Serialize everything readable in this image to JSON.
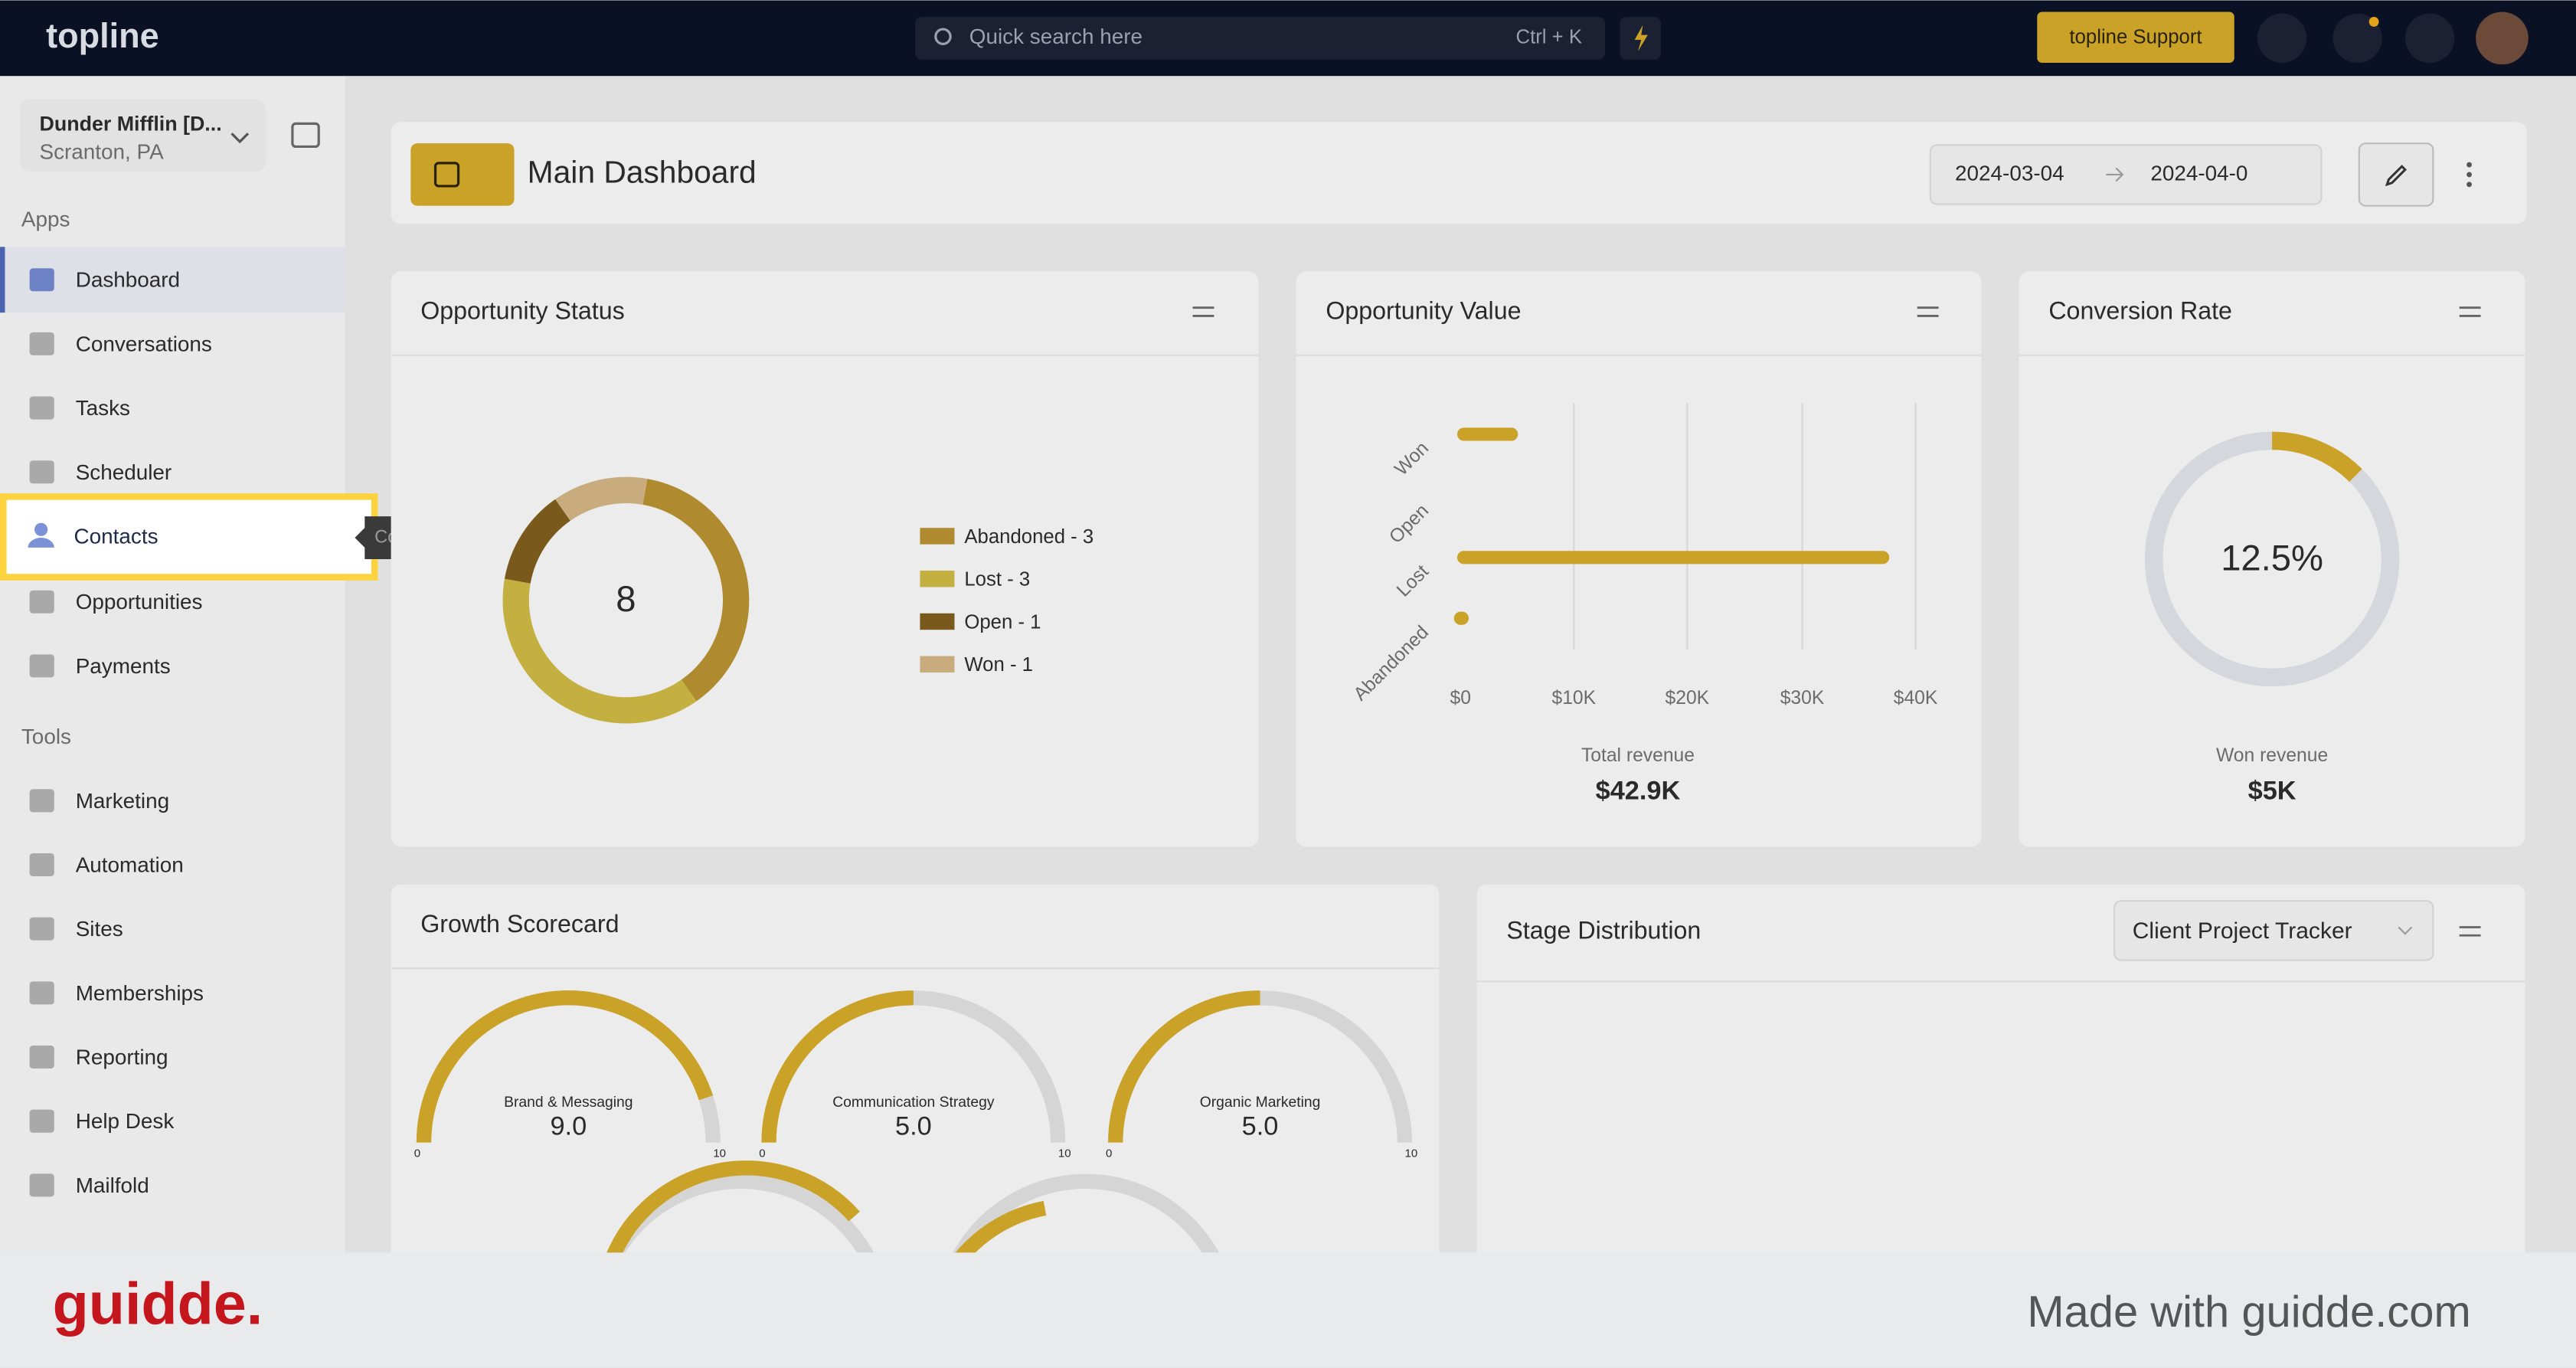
{
  "topbar": {
    "logo": "topline",
    "search": "Quick search here",
    "shortcut": "Ctrl + K",
    "support": "topline Support"
  },
  "sidebar": {
    "account": {
      "name": "Dunder Mifflin [D...",
      "location": "Scranton, PA"
    },
    "sections": [
      {
        "title": "Apps",
        "items": [
          "Dashboard",
          "Conversations",
          "Tasks",
          "Scheduler",
          "Contacts",
          "Opportunities",
          "Payments"
        ]
      },
      {
        "title": "Tools",
        "items": [
          "Marketing",
          "Automation",
          "Sites",
          "Memberships",
          "Reporting",
          "Help Desk",
          "Mailfold"
        ]
      }
    ]
  },
  "tooltip": "Cont",
  "header": {
    "title": "Main Dashboard",
    "date_from": "2024-03-04",
    "date_to": "2024-04-0"
  },
  "cards": {
    "opportunity_status": {
      "title": "Opportunity Status",
      "center": "8",
      "legend": [
        "Abandoned - 3",
        "Lost - 3",
        "Open - 1",
        "Won - 1"
      ]
    },
    "opportunity_value": {
      "title": "Opportunity Value",
      "categories": [
        "Won",
        "Open",
        "Lost",
        "Abandoned"
      ],
      "x_labels": [
        "$0",
        "$10K",
        "$20K",
        "$30K",
        "$40K"
      ],
      "caption": "Total revenue",
      "total": "$42.9K"
    },
    "conversion_rate": {
      "title": "Conversion Rate",
      "value": "12.5%",
      "caption": "Won revenue",
      "amount": "$5K"
    },
    "growth_scorecard": {
      "title": "Growth Scorecard",
      "gauges": [
        {
          "label": "Brand & Messaging",
          "value": "9.0",
          "min": "0",
          "max": "10"
        },
        {
          "label": "Communication Strategy",
          "value": "5.0",
          "min": "0",
          "max": "10"
        },
        {
          "label": "Organic Marketing",
          "value": "5.0",
          "min": "0",
          "max": "10"
        }
      ]
    },
    "stage_distribution": {
      "title": "Stage Distribution",
      "pipeline": "Client Project Tracker"
    }
  },
  "footer": {
    "brand": "guidde.",
    "credit": "Made with guidde.com"
  }
}
